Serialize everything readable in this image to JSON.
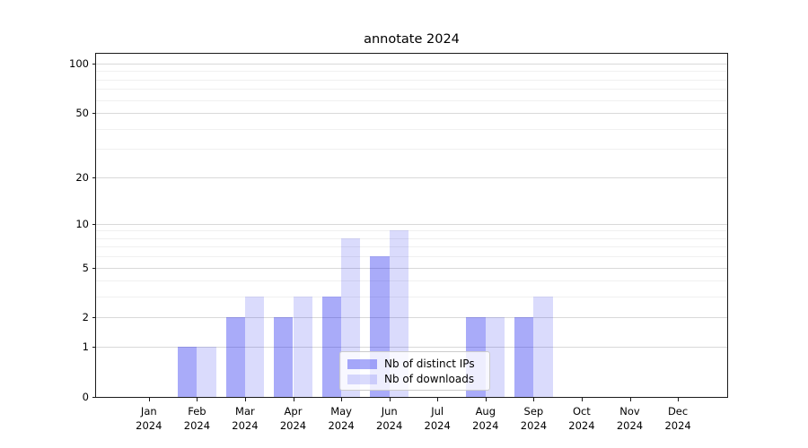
{
  "title": "annotate 2024",
  "chart_data": {
    "type": "bar",
    "title": "annotate 2024",
    "categories": [
      "Jan",
      "Feb",
      "Mar",
      "Apr",
      "May",
      "Jun",
      "Jul",
      "Aug",
      "Sep",
      "Oct",
      "Nov",
      "Dec"
    ],
    "x_tick_second_line": "2024",
    "series": [
      {
        "name": "Nb of distinct IPs",
        "values": [
          0,
          1,
          2,
          2,
          3,
          6,
          0,
          2,
          2,
          0,
          0,
          0
        ],
        "fill": "rgba(10,15,238,0.35)",
        "hex_on_white": "#a9aaf9"
      },
      {
        "name": "Nb of downloads",
        "values": [
          0,
          1,
          3,
          3,
          8,
          9,
          0,
          2,
          3,
          0,
          0,
          0
        ],
        "fill": "rgba(10,15,238,0.15)",
        "hex_on_white": "#dadbfb"
      }
    ],
    "y_scale": "log1p",
    "y_major_ticks": [
      0,
      1,
      2,
      5,
      10,
      20,
      50,
      100
    ],
    "y_minor_gridlines": [
      3,
      4,
      6,
      7,
      8,
      9,
      30,
      40,
      60,
      70,
      80,
      90
    ],
    "ylim": [
      0,
      115
    ],
    "grid": true,
    "legend_position": "lower center",
    "colors": {
      "grid_major": "#d9d9d9",
      "grid_minor": "#f0f0f0",
      "spine": "#1a1a1a",
      "background": "#ffffff"
    }
  }
}
